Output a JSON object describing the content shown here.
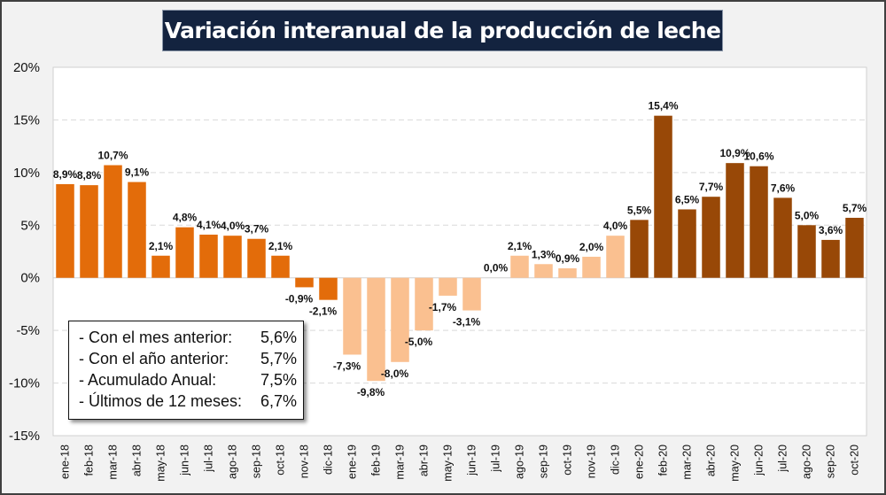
{
  "chart_data": {
    "type": "bar",
    "title": "Variación interanual de la producción de leche",
    "xlabel": "",
    "ylabel": "",
    "ylim": [
      -0.15,
      0.2
    ],
    "yticks": [
      -0.15,
      -0.1,
      -0.05,
      0,
      0.05,
      0.1,
      0.15,
      0.2
    ],
    "ytick_labels": [
      "-15%",
      "-10%",
      "-5%",
      "0%",
      "5%",
      "10%",
      "15%",
      "20%"
    ],
    "grid": "horizontal-dashed",
    "categories": [
      "ene-18",
      "feb-18",
      "mar-18",
      "abr-18",
      "may-18",
      "jun-18",
      "jul-18",
      "ago-18",
      "sep-18",
      "oct-18",
      "nov-18",
      "dic-18",
      "ene-19",
      "feb-19",
      "mar-19",
      "abr-19",
      "may-19",
      "jun-19",
      "jul-19",
      "ago-19",
      "sep-19",
      "oct-19",
      "nov-19",
      "dic-19",
      "ene-20",
      "feb-20",
      "mar-20",
      "abr-20",
      "may-20",
      "jun-20",
      "jul-20",
      "ago-20",
      "sep-20",
      "oct-20"
    ],
    "values": [
      0.089,
      0.088,
      0.107,
      0.091,
      0.021,
      0.048,
      0.041,
      0.04,
      0.037,
      0.021,
      -0.009,
      -0.021,
      -0.073,
      -0.098,
      -0.08,
      -0.05,
      -0.017,
      -0.031,
      0.0,
      0.021,
      0.013,
      0.009,
      0.02,
      0.04,
      0.055,
      0.154,
      0.065,
      0.077,
      0.109,
      0.106,
      0.076,
      0.05,
      0.036,
      0.057
    ],
    "data_labels": [
      "8,9%",
      "8,8%",
      "10,7%",
      "9,1%",
      "2,1%",
      "4,8%",
      "4,1%",
      "4,0%",
      "3,7%",
      "2,1%",
      "-0,9%",
      "-2,1%",
      "-7,3%",
      "-9,8%",
      "-8,0%",
      "-5,0%",
      "-1,7%",
      "-3,1%",
      "0,0%",
      "2,1%",
      "1,3%",
      "0,9%",
      "2,0%",
      "4,0%",
      "5,5%",
      "15,4%",
      "6,5%",
      "7,7%",
      "10,9%",
      "10,6%",
      "7,6%",
      "5,0%",
      "3,6%",
      "5,7%"
    ],
    "series_colors_by_year": {
      "2018": "#e36c0a",
      "2019": "#fac090",
      "2020": "#984807"
    },
    "legend": "none"
  },
  "summary_box": {
    "rows": [
      {
        "label": "- Con el mes anterior:",
        "value": "5,6%"
      },
      {
        "label": "- Con el año anterior:",
        "value": "5,7%"
      },
      {
        "label": "- Acumulado Anual:",
        "value": "7,5%"
      },
      {
        "label": "- Últimos de 12 meses:",
        "value": "6,7%"
      }
    ]
  }
}
